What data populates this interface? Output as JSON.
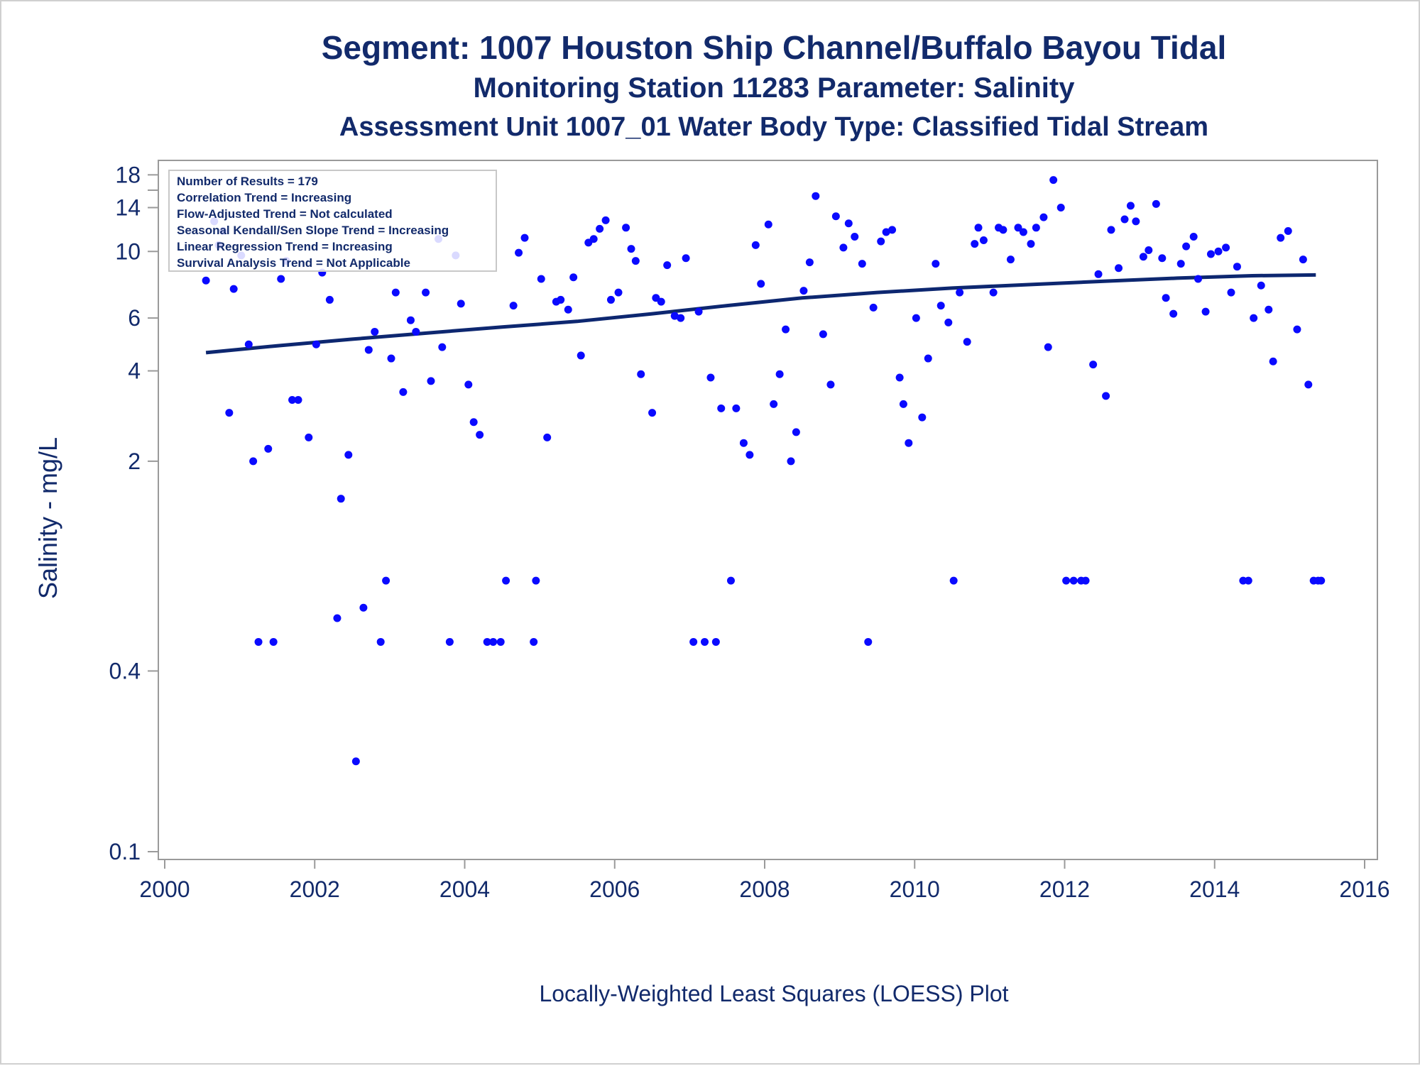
{
  "titles": {
    "line1": "Segment: 1007  Houston Ship Channel/Buffalo Bayou Tidal",
    "line2": "Monitoring Station 11283 Parameter: Salinity",
    "line3": "Assessment Unit 1007_01   Water Body Type: Classified Tidal Stream"
  },
  "footnote": "Locally-Weighted Least Squares (LOESS) Plot",
  "info_box": [
    "Number of Results = 179",
    "Correlation Trend = Increasing",
    "Flow-Adjusted Trend = Not calculated",
    "Seasonal Kendall/Sen Slope Trend = Increasing",
    "Linear Regression Trend = Increasing",
    "Survival Analysis Trend = Not Applicable"
  ],
  "colors": {
    "text": "#122a6b",
    "points": "#0a0aff",
    "trend_line": "#0d2770",
    "axis": "#9a9a9a"
  },
  "chart_data": {
    "type": "scatter",
    "xlabel": "",
    "ylabel": "Salinity - mg/L",
    "y_scale": "log",
    "xlim": [
      2000,
      2016
    ],
    "ylim": [
      0.1,
      20
    ],
    "x_ticks": [
      2000,
      2002,
      2004,
      2006,
      2008,
      2010,
      2012,
      2014,
      2016
    ],
    "y_ticks": [
      0.1,
      0.4,
      2,
      4,
      6,
      10,
      14,
      18
    ],
    "y_minor_ticks": [
      16
    ],
    "grid": false,
    "series": [
      {
        "style": "points",
        "points": [
          [
            2000.55,
            8.0
          ],
          [
            2000.66,
            12.6
          ],
          [
            2000.72,
            10.5
          ],
          [
            2000.78,
            11.7
          ],
          [
            2000.86,
            2.9
          ],
          [
            2000.92,
            7.5
          ],
          [
            2001.02,
            9.7
          ],
          [
            2001.12,
            4.9
          ],
          [
            2001.18,
            2.0
          ],
          [
            2001.25,
            0.5
          ],
          [
            2001.38,
            2.2
          ],
          [
            2001.45,
            0.5
          ],
          [
            2001.55,
            8.1
          ],
          [
            2001.62,
            9.3
          ],
          [
            2001.7,
            3.2
          ],
          [
            2001.78,
            3.2
          ],
          [
            2001.92,
            2.4
          ],
          [
            2002.02,
            4.9
          ],
          [
            2002.1,
            8.5
          ],
          [
            2002.2,
            6.9
          ],
          [
            2002.3,
            0.6
          ],
          [
            2002.35,
            1.5
          ],
          [
            2002.45,
            2.1
          ],
          [
            2002.55,
            0.2
          ],
          [
            2002.65,
            0.65
          ],
          [
            2002.72,
            4.7
          ],
          [
            2002.8,
            5.4
          ],
          [
            2002.88,
            0.5
          ],
          [
            2002.95,
            0.8
          ],
          [
            2003.02,
            4.4
          ],
          [
            2003.08,
            7.3
          ],
          [
            2003.18,
            3.4
          ],
          [
            2003.28,
            5.9
          ],
          [
            2003.35,
            5.4
          ],
          [
            2003.48,
            7.3
          ],
          [
            2003.55,
            3.7
          ],
          [
            2003.65,
            11.0
          ],
          [
            2003.7,
            4.8
          ],
          [
            2003.8,
            0.5
          ],
          [
            2003.88,
            9.7
          ],
          [
            2003.95,
            6.7
          ],
          [
            2004.05,
            3.6
          ],
          [
            2004.12,
            2.7
          ],
          [
            2004.2,
            2.45
          ],
          [
            2004.3,
            0.5
          ],
          [
            2004.38,
            0.5
          ],
          [
            2004.48,
            0.5
          ],
          [
            2004.55,
            0.8
          ],
          [
            2004.65,
            6.6
          ],
          [
            2004.72,
            9.9
          ],
          [
            2004.8,
            11.1
          ],
          [
            2004.92,
            0.5
          ],
          [
            2004.95,
            0.8
          ],
          [
            2005.02,
            8.1
          ],
          [
            2005.1,
            2.4
          ],
          [
            2005.22,
            6.8
          ],
          [
            2005.28,
            6.9
          ],
          [
            2005.38,
            6.4
          ],
          [
            2005.45,
            8.2
          ],
          [
            2005.55,
            4.5
          ],
          [
            2005.65,
            10.7
          ],
          [
            2005.72,
            11.0
          ],
          [
            2005.8,
            11.9
          ],
          [
            2005.88,
            12.7
          ],
          [
            2005.95,
            6.9
          ],
          [
            2006.05,
            7.3
          ],
          [
            2006.15,
            12.0
          ],
          [
            2006.22,
            10.2
          ],
          [
            2006.28,
            9.3
          ],
          [
            2006.35,
            3.9
          ],
          [
            2006.5,
            2.9
          ],
          [
            2006.55,
            7.0
          ],
          [
            2006.62,
            6.8
          ],
          [
            2006.7,
            9.0
          ],
          [
            2006.8,
            6.1
          ],
          [
            2006.88,
            6.0
          ],
          [
            2006.95,
            9.5
          ],
          [
            2007.05,
            0.5
          ],
          [
            2007.12,
            6.3
          ],
          [
            2007.2,
            0.5
          ],
          [
            2007.28,
            3.8
          ],
          [
            2007.35,
            0.5
          ],
          [
            2007.42,
            3.0
          ],
          [
            2007.55,
            0.8
          ],
          [
            2007.62,
            3.0
          ],
          [
            2007.72,
            2.3
          ],
          [
            2007.8,
            2.1
          ],
          [
            2007.88,
            10.5
          ],
          [
            2007.95,
            7.8
          ],
          [
            2008.05,
            12.3
          ],
          [
            2008.12,
            3.1
          ],
          [
            2008.2,
            3.9
          ],
          [
            2008.28,
            5.5
          ],
          [
            2008.35,
            2.0
          ],
          [
            2008.42,
            2.5
          ],
          [
            2008.52,
            7.4
          ],
          [
            2008.6,
            9.2
          ],
          [
            2008.68,
            15.3
          ],
          [
            2008.78,
            5.3
          ],
          [
            2008.88,
            3.6
          ],
          [
            2008.95,
            13.1
          ],
          [
            2009.05,
            10.3
          ],
          [
            2009.12,
            12.4
          ],
          [
            2009.2,
            11.2
          ],
          [
            2009.3,
            9.1
          ],
          [
            2009.38,
            0.5
          ],
          [
            2009.45,
            6.5
          ],
          [
            2009.55,
            10.8
          ],
          [
            2009.62,
            11.6
          ],
          [
            2009.7,
            11.8
          ],
          [
            2009.8,
            3.8
          ],
          [
            2009.85,
            3.1
          ],
          [
            2009.92,
            2.3
          ],
          [
            2010.02,
            6.0
          ],
          [
            2010.1,
            2.8
          ],
          [
            2010.18,
            4.4
          ],
          [
            2010.28,
            9.1
          ],
          [
            2010.35,
            6.6
          ],
          [
            2010.45,
            5.8
          ],
          [
            2010.52,
            0.8
          ],
          [
            2010.6,
            7.3
          ],
          [
            2010.7,
            5.0
          ],
          [
            2010.8,
            10.6
          ],
          [
            2010.85,
            12.0
          ],
          [
            2010.92,
            10.9
          ],
          [
            2011.05,
            7.3
          ],
          [
            2011.12,
            12.0
          ],
          [
            2011.18,
            11.8
          ],
          [
            2011.28,
            9.4
          ],
          [
            2011.38,
            12.0
          ],
          [
            2011.45,
            11.6
          ],
          [
            2011.55,
            10.6
          ],
          [
            2011.62,
            12.0
          ],
          [
            2011.72,
            13.0
          ],
          [
            2011.78,
            4.8
          ],
          [
            2011.85,
            17.3
          ],
          [
            2011.95,
            14.0
          ],
          [
            2012.02,
            0.8
          ],
          [
            2012.12,
            0.8
          ],
          [
            2012.22,
            0.8
          ],
          [
            2012.28,
            0.8
          ],
          [
            2012.38,
            4.2
          ],
          [
            2012.45,
            8.4
          ],
          [
            2012.55,
            3.3
          ],
          [
            2012.62,
            11.8
          ],
          [
            2012.72,
            8.8
          ],
          [
            2012.8,
            12.8
          ],
          [
            2012.88,
            14.2
          ],
          [
            2012.95,
            12.6
          ],
          [
            2013.05,
            9.6
          ],
          [
            2013.12,
            10.1
          ],
          [
            2013.22,
            14.4
          ],
          [
            2013.3,
            9.5
          ],
          [
            2013.35,
            7.0
          ],
          [
            2013.45,
            6.2
          ],
          [
            2013.55,
            9.1
          ],
          [
            2013.62,
            10.4
          ],
          [
            2013.72,
            11.2
          ],
          [
            2013.78,
            8.1
          ],
          [
            2013.88,
            6.3
          ],
          [
            2013.95,
            9.8
          ],
          [
            2014.05,
            10.0
          ],
          [
            2014.15,
            10.3
          ],
          [
            2014.22,
            7.3
          ],
          [
            2014.3,
            8.9
          ],
          [
            2014.38,
            0.8
          ],
          [
            2014.45,
            0.8
          ],
          [
            2014.52,
            6.0
          ],
          [
            2014.62,
            7.7
          ],
          [
            2014.72,
            6.4
          ],
          [
            2014.78,
            4.3
          ],
          [
            2014.88,
            11.1
          ],
          [
            2014.98,
            11.7
          ],
          [
            2015.1,
            5.5
          ],
          [
            2015.18,
            9.4
          ],
          [
            2015.25,
            3.6
          ],
          [
            2015.32,
            0.8
          ],
          [
            2015.38,
            0.8
          ],
          [
            2015.42,
            0.8
          ]
        ]
      },
      {
        "style": "line",
        "points": [
          [
            2000.55,
            4.6
          ],
          [
            2001.5,
            4.85
          ],
          [
            2002.5,
            5.1
          ],
          [
            2003.5,
            5.35
          ],
          [
            2004.5,
            5.6
          ],
          [
            2005.5,
            5.85
          ],
          [
            2006.5,
            6.2
          ],
          [
            2007.5,
            6.6
          ],
          [
            2008.5,
            7.0
          ],
          [
            2009.5,
            7.3
          ],
          [
            2010.5,
            7.55
          ],
          [
            2011.5,
            7.75
          ],
          [
            2012.5,
            7.95
          ],
          [
            2013.5,
            8.15
          ],
          [
            2014.5,
            8.3
          ],
          [
            2015.35,
            8.35
          ]
        ]
      }
    ]
  }
}
